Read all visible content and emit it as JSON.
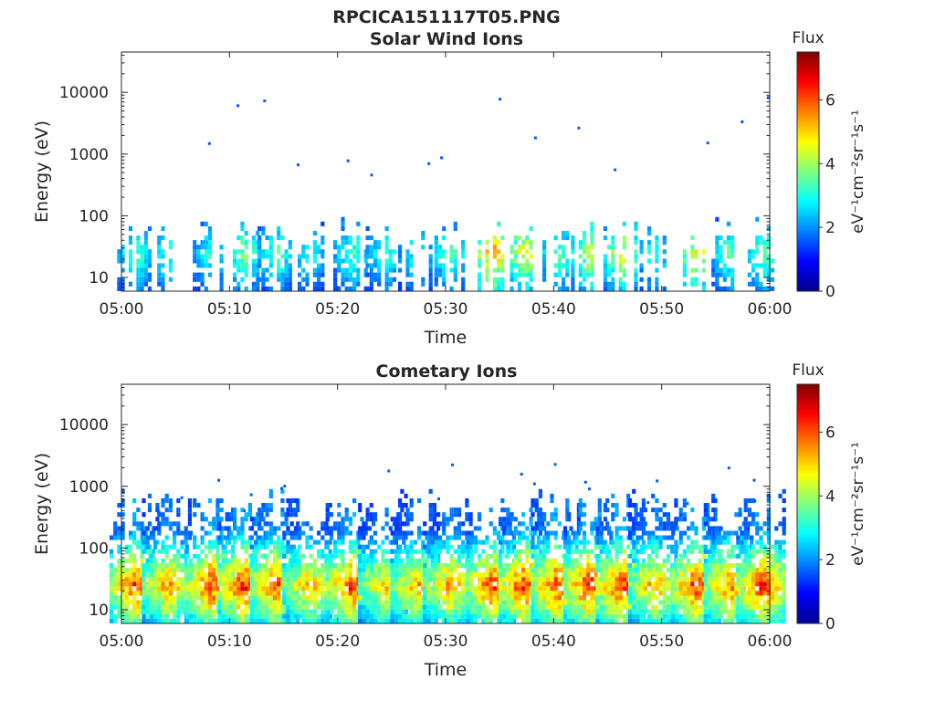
{
  "figure": {
    "title": "RPCICA151117T05.PNG"
  },
  "colors": {
    "axis": "#262626",
    "colormap": [
      "#00008f",
      "#0000ff",
      "#0080ff",
      "#00ffff",
      "#80ff80",
      "#ffff00",
      "#ff8000",
      "#ff0000",
      "#800000"
    ]
  },
  "chart_data": [
    {
      "type": "heatmap",
      "title": "Solar Wind Ions",
      "xlabel": "Time",
      "ylabel": "Energy (eV)",
      "y_scale": "log",
      "ylim": [
        6,
        45000
      ],
      "x_range": [
        "05:00",
        "06:00"
      ],
      "x_ticks": [
        "05:00",
        "05:10",
        "05:20",
        "05:30",
        "05:40",
        "05:50",
        "06:00"
      ],
      "y_ticks": [
        "10",
        "100",
        "1000",
        "10000"
      ],
      "colorbar": {
        "title": "Flux",
        "label": "eV⁻¹cm⁻²sr⁻¹s⁻¹",
        "range": [
          0,
          7.5
        ],
        "ticks": [
          "0",
          "2",
          "4",
          "6"
        ]
      },
      "bursts": [
        {
          "time": "05:01",
          "peak_flux": 3.8
        },
        {
          "time": "05:04",
          "peak_flux": 3.6
        },
        {
          "time": "05:08",
          "peak_flux": 3.6
        },
        {
          "time": "05:11",
          "peak_flux": 4.2
        },
        {
          "time": "05:14",
          "peak_flux": 3.8
        },
        {
          "time": "05:17",
          "peak_flux": 3.5
        },
        {
          "time": "05:21",
          "peak_flux": 3.8
        },
        {
          "time": "05:24",
          "peak_flux": 3.6
        },
        {
          "time": "05:27",
          "peak_flux": 3.5
        },
        {
          "time": "05:30",
          "peak_flux": 3.8
        },
        {
          "time": "05:34",
          "peak_flux": 6.0
        },
        {
          "time": "05:37",
          "peak_flux": 5.2
        },
        {
          "time": "05:40",
          "peak_flux": 4.0
        },
        {
          "time": "05:43",
          "peak_flux": 4.8
        },
        {
          "time": "05:46",
          "peak_flux": 5.0
        },
        {
          "time": "05:49",
          "peak_flux": 3.5
        },
        {
          "time": "05:53",
          "peak_flux": 5.2
        },
        {
          "time": "05:56",
          "peak_flux": 3.8
        },
        {
          "time": "05:59",
          "peak_flux": 4.0
        }
      ]
    },
    {
      "type": "heatmap",
      "title": "Cometary Ions",
      "xlabel": "Time",
      "ylabel": "Energy (eV)",
      "y_scale": "log",
      "ylim": [
        6,
        45000
      ],
      "x_range": [
        "05:00",
        "06:00"
      ],
      "x_ticks": [
        "05:00",
        "05:10",
        "05:20",
        "05:30",
        "05:40",
        "05:50",
        "06:00"
      ],
      "y_ticks": [
        "10",
        "100",
        "1000",
        "10000"
      ],
      "colorbar": {
        "title": "Flux",
        "label": "eV⁻¹cm⁻²sr⁻¹s⁻¹",
        "range": [
          0,
          7.5
        ],
        "ticks": [
          "0",
          "2",
          "4",
          "6"
        ]
      },
      "bursts": [
        {
          "time": "05:01",
          "peak_flux": 6.8
        },
        {
          "time": "05:04",
          "peak_flux": 6.0
        },
        {
          "time": "05:08",
          "peak_flux": 6.8
        },
        {
          "time": "05:11",
          "peak_flux": 7.0
        },
        {
          "time": "05:14",
          "peak_flux": 6.6
        },
        {
          "time": "05:17",
          "peak_flux": 5.8
        },
        {
          "time": "05:21",
          "peak_flux": 6.8
        },
        {
          "time": "05:24",
          "peak_flux": 5.6
        },
        {
          "time": "05:27",
          "peak_flux": 5.8
        },
        {
          "time": "05:30",
          "peak_flux": 6.0
        },
        {
          "time": "05:34",
          "peak_flux": 6.8
        },
        {
          "time": "05:37",
          "peak_flux": 7.0
        },
        {
          "time": "05:40",
          "peak_flux": 6.8
        },
        {
          "time": "05:43",
          "peak_flux": 7.0
        },
        {
          "time": "05:46",
          "peak_flux": 7.0
        },
        {
          "time": "05:49",
          "peak_flux": 6.0
        },
        {
          "time": "05:53",
          "peak_flux": 7.0
        },
        {
          "time": "05:56",
          "peak_flux": 6.4
        },
        {
          "time": "05:59",
          "peak_flux": 6.8
        }
      ]
    }
  ]
}
